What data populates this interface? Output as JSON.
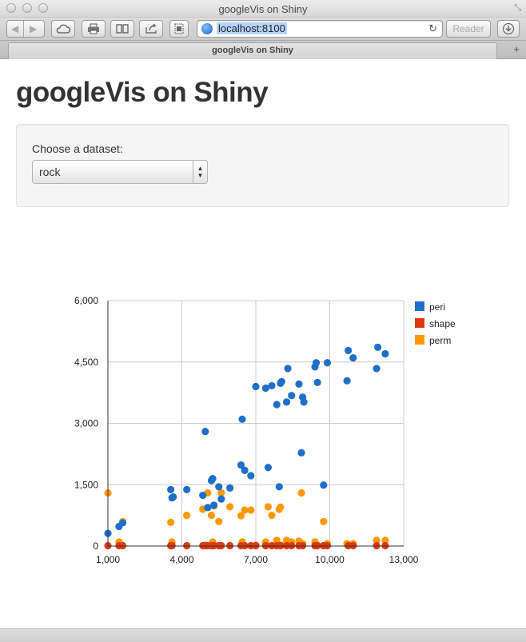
{
  "browser": {
    "window_title": "googleVis on Shiny",
    "url": "localhost:8100",
    "reader_label": "Reader",
    "tab_title": "googleVis on Shiny",
    "icons": {
      "back": "back-arrow-icon",
      "forward": "forward-arrow-icon",
      "cloud": "cloud-icon",
      "print": "print-icon",
      "reading_list": "book-icon",
      "share": "share-icon",
      "tab_view": "tab-view-icon",
      "reload": "reload-icon",
      "downloads": "download-icon",
      "new_tab": "plus-icon"
    }
  },
  "page": {
    "title": "googleVis on Shiny",
    "control_label": "Choose a dataset:",
    "dataset_selected": "rock"
  },
  "chart_data": {
    "type": "scatter",
    "xlim": [
      1000,
      13000
    ],
    "ylim": [
      0,
      6000
    ],
    "x_ticks": [
      "1,000",
      "4,000",
      "7,000",
      "10,000",
      "13,000"
    ],
    "y_ticks": [
      "0",
      "1,500",
      "3,000",
      "4,500",
      "6,000"
    ],
    "grid": true,
    "legend_position": "right",
    "series": [
      {
        "name": "peri",
        "color": "#1f6fc9",
        "points": [
          [
            1000,
            310
          ],
          [
            1450,
            480
          ],
          [
            1600,
            570
          ],
          [
            3550,
            1380
          ],
          [
            3600,
            1180
          ],
          [
            3650,
            1200
          ],
          [
            4200,
            1380
          ],
          [
            4850,
            1240
          ],
          [
            4950,
            2800
          ],
          [
            5050,
            940
          ],
          [
            5200,
            1600
          ],
          [
            5250,
            1650
          ],
          [
            5300,
            1000
          ],
          [
            5500,
            1450
          ],
          [
            5600,
            1150
          ],
          [
            5950,
            1420
          ],
          [
            6400,
            1980
          ],
          [
            6450,
            3100
          ],
          [
            6550,
            1850
          ],
          [
            6800,
            1720
          ],
          [
            7000,
            3900
          ],
          [
            7400,
            3860
          ],
          [
            7500,
            1920
          ],
          [
            7650,
            3920
          ],
          [
            7850,
            3460
          ],
          [
            7950,
            1450
          ],
          [
            8000,
            3980
          ],
          [
            8050,
            4020
          ],
          [
            8250,
            3520
          ],
          [
            8300,
            4340
          ],
          [
            8450,
            3680
          ],
          [
            8750,
            3960
          ],
          [
            8850,
            2280
          ],
          [
            8900,
            3640
          ],
          [
            8950,
            3520
          ],
          [
            9400,
            4380
          ],
          [
            9450,
            4480
          ],
          [
            9500,
            4000
          ],
          [
            9750,
            1490
          ],
          [
            9900,
            4480
          ],
          [
            10700,
            4040
          ],
          [
            10750,
            4780
          ],
          [
            10950,
            4600
          ],
          [
            11900,
            4340
          ],
          [
            11950,
            4860
          ],
          [
            12250,
            4700
          ]
        ]
      },
      {
        "name": "shape",
        "color": "#dc3912",
        "points": [
          [
            1000,
            10
          ],
          [
            1450,
            10
          ],
          [
            1600,
            10
          ],
          [
            3550,
            10
          ],
          [
            3600,
            10
          ],
          [
            4200,
            10
          ],
          [
            4850,
            10
          ],
          [
            4950,
            10
          ],
          [
            5050,
            10
          ],
          [
            5200,
            10
          ],
          [
            5300,
            10
          ],
          [
            5500,
            10
          ],
          [
            5600,
            10
          ],
          [
            5950,
            10
          ],
          [
            6400,
            10
          ],
          [
            6550,
            10
          ],
          [
            6800,
            10
          ],
          [
            7000,
            10
          ],
          [
            7400,
            10
          ],
          [
            7650,
            10
          ],
          [
            7850,
            10
          ],
          [
            8000,
            10
          ],
          [
            8250,
            10
          ],
          [
            8450,
            10
          ],
          [
            8750,
            10
          ],
          [
            8900,
            10
          ],
          [
            9400,
            10
          ],
          [
            9500,
            10
          ],
          [
            9750,
            10
          ],
          [
            9900,
            10
          ],
          [
            10750,
            10
          ],
          [
            10950,
            10
          ],
          [
            11900,
            10
          ],
          [
            12250,
            10
          ]
        ]
      },
      {
        "name": "perm",
        "color": "#ff9900",
        "points": [
          [
            1000,
            1300
          ],
          [
            1450,
            100
          ],
          [
            1600,
            600
          ],
          [
            3550,
            580
          ],
          [
            3600,
            100
          ],
          [
            4200,
            750
          ],
          [
            4850,
            900
          ],
          [
            4950,
            20
          ],
          [
            5050,
            1300
          ],
          [
            5200,
            750
          ],
          [
            5250,
            100
          ],
          [
            5300,
            980
          ],
          [
            5500,
            600
          ],
          [
            5600,
            1300
          ],
          [
            5950,
            960
          ],
          [
            6400,
            740
          ],
          [
            6450,
            100
          ],
          [
            6550,
            880
          ],
          [
            6800,
            880
          ],
          [
            7000,
            20
          ],
          [
            7400,
            100
          ],
          [
            7500,
            960
          ],
          [
            7650,
            750
          ],
          [
            7850,
            140
          ],
          [
            7950,
            900
          ],
          [
            8000,
            950
          ],
          [
            8050,
            20
          ],
          [
            8250,
            140
          ],
          [
            8450,
            100
          ],
          [
            8750,
            120
          ],
          [
            8850,
            1300
          ],
          [
            8900,
            60
          ],
          [
            9400,
            100
          ],
          [
            9500,
            20
          ],
          [
            9750,
            600
          ],
          [
            9900,
            60
          ],
          [
            10700,
            60
          ],
          [
            10950,
            60
          ],
          [
            11900,
            140
          ],
          [
            12250,
            140
          ]
        ]
      }
    ]
  }
}
